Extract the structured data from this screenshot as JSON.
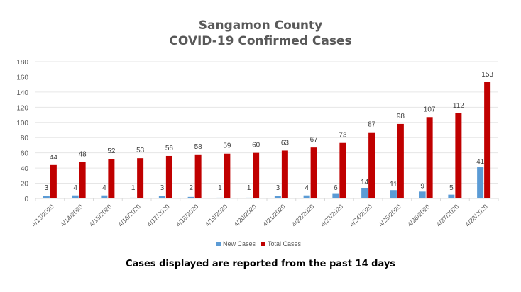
{
  "chart_data": {
    "type": "bar",
    "title": "Sangamon County",
    "subtitle": "COVID-19 Confirmed Cases",
    "xlabel": "",
    "ylabel": "",
    "ylim": [
      0,
      180
    ],
    "yticks": [
      0,
      20,
      40,
      60,
      80,
      100,
      120,
      140,
      160,
      180
    ],
    "grid": true,
    "legend_position": "bottom",
    "categories": [
      "4/13/2020",
      "4/14/2020",
      "4/15/2020",
      "4/16/2020",
      "4/17/2020",
      "4/18/2020",
      "4/19/2020",
      "4/20/2020",
      "4/21/2020",
      "4/22/2020",
      "4/23/2020",
      "4/24/2020",
      "4/25/2020",
      "4/26/2020",
      "4/27/2020",
      "4/28/2020"
    ],
    "series": [
      {
        "name": "New Cases",
        "color": "#5b9bd5",
        "values": [
          3,
          4,
          4,
          1,
          3,
          2,
          1,
          1,
          3,
          4,
          6,
          14,
          11,
          9,
          5,
          41
        ]
      },
      {
        "name": "Total Cases",
        "color": "#c00000",
        "values": [
          44,
          48,
          52,
          53,
          56,
          58,
          59,
          60,
          63,
          67,
          73,
          87,
          98,
          107,
          112,
          153
        ]
      }
    ],
    "footnote": "Cases displayed are reported from the past 14 days"
  }
}
